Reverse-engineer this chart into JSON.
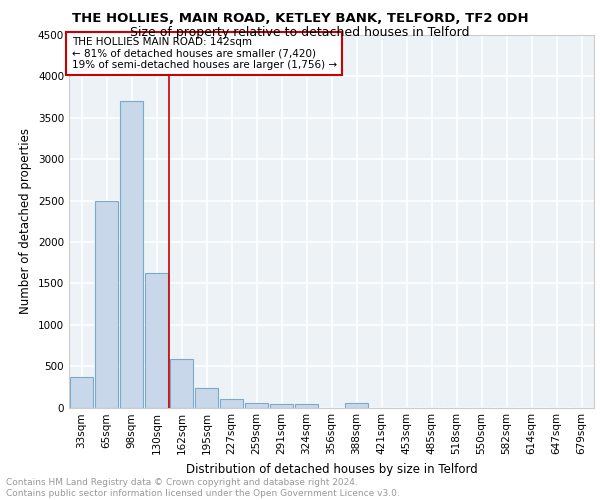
{
  "title1": "THE HOLLIES, MAIN ROAD, KETLEY BANK, TELFORD, TF2 0DH",
  "title2": "Size of property relative to detached houses in Telford",
  "xlabel": "Distribution of detached houses by size in Telford",
  "ylabel": "Number of detached properties",
  "categories": [
    "33sqm",
    "65sqm",
    "98sqm",
    "130sqm",
    "162sqm",
    "195sqm",
    "227sqm",
    "259sqm",
    "291sqm",
    "324sqm",
    "356sqm",
    "388sqm",
    "421sqm",
    "453sqm",
    "485sqm",
    "518sqm",
    "550sqm",
    "582sqm",
    "614sqm",
    "647sqm",
    "679sqm"
  ],
  "values": [
    370,
    2500,
    3700,
    1630,
    590,
    240,
    100,
    55,
    45,
    40,
    0,
    50,
    0,
    0,
    0,
    0,
    0,
    0,
    0,
    0,
    0
  ],
  "bar_color": "#c8d8ea",
  "bar_edge_color": "#7aaac8",
  "bar_linewidth": 0.8,
  "vline_color": "#cc0000",
  "vline_linewidth": 1.2,
  "annotation_text": "THE HOLLIES MAIN ROAD: 142sqm\n← 81% of detached houses are smaller (7,420)\n19% of semi-detached houses are larger (1,756) →",
  "ylim": [
    0,
    4500
  ],
  "yticks": [
    0,
    500,
    1000,
    1500,
    2000,
    2500,
    3000,
    3500,
    4000,
    4500
  ],
  "plot_bg_color": "#edf2f7",
  "grid_color": "#ffffff",
  "footer_text": "Contains HM Land Registry data © Crown copyright and database right 2024.\nContains public sector information licensed under the Open Government Licence v3.0.",
  "title1_fontsize": 9.5,
  "title2_fontsize": 9,
  "axis_label_fontsize": 8.5,
  "tick_fontsize": 7.5,
  "annotation_fontsize": 7.5,
  "footer_fontsize": 6.5
}
